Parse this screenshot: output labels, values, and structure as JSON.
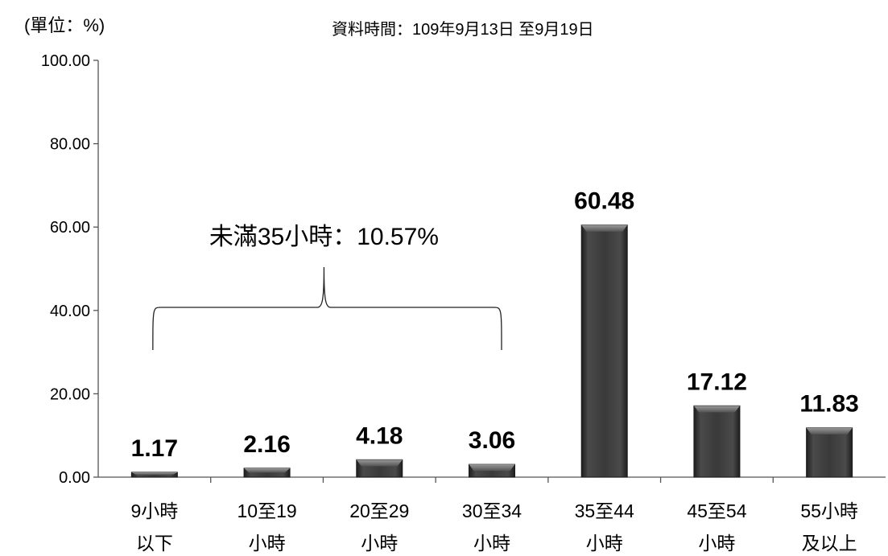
{
  "chart_data": {
    "type": "bar",
    "unit_label": "(單位：%)",
    "period_label": "資料時間：109年9月13日 至9月19日",
    "categories": [
      [
        "9小時",
        "以下"
      ],
      [
        "10至19",
        "小時"
      ],
      [
        "20至29",
        "小時"
      ],
      [
        "30至34",
        "小時"
      ],
      [
        "35至44",
        "小時"
      ],
      [
        "45至54",
        "小時"
      ],
      [
        "55小時",
        "及以上"
      ]
    ],
    "values": [
      1.17,
      2.16,
      4.18,
      3.06,
      60.48,
      17.12,
      11.83
    ],
    "value_labels": [
      "1.17",
      "2.16",
      "4.18",
      "3.06",
      "60.48",
      "17.12",
      "11.83"
    ],
    "ylim": [
      0,
      100
    ],
    "yticks": [
      "0.00",
      "20.00",
      "40.00",
      "60.00",
      "80.00",
      "100.00"
    ],
    "bar_color": "#3a3a3a",
    "annotation": {
      "text": "未滿35小時：10.57%",
      "from_category": 0,
      "to_category": 3
    }
  }
}
